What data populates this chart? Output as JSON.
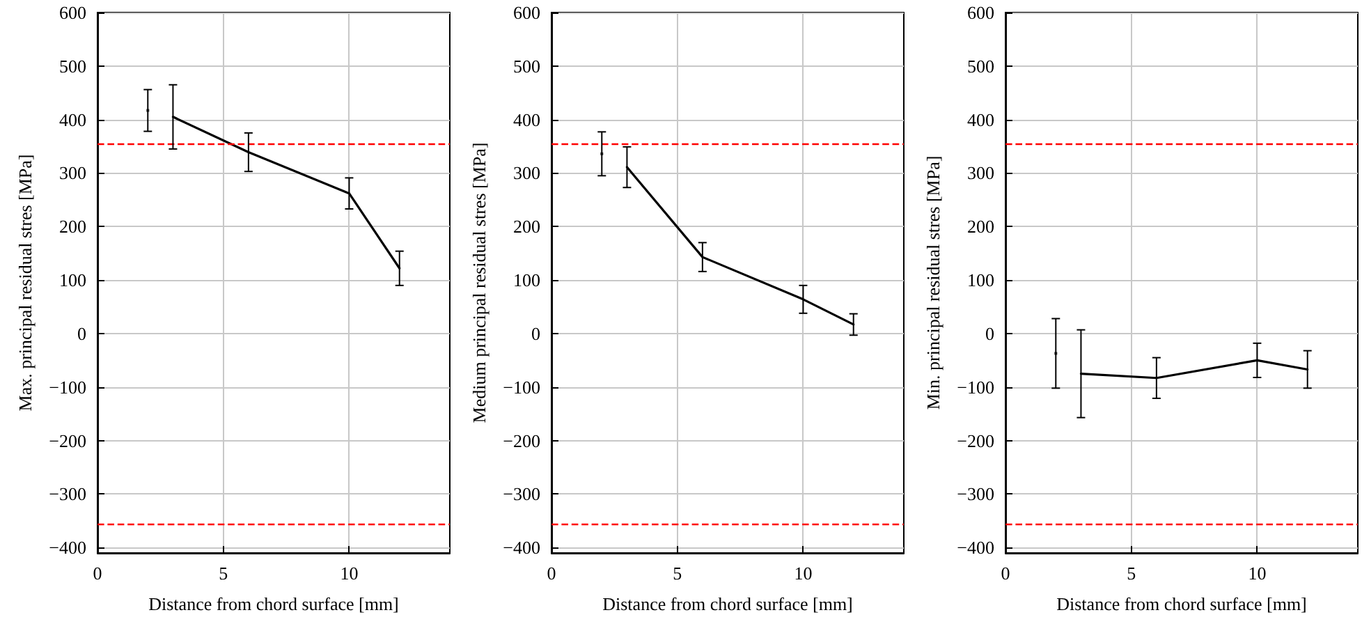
{
  "chart_data": [
    {
      "type": "line",
      "ylabel": "Max. principal residual stres [MPa]",
      "xlabel": "Distance from chord surface [mm]",
      "xlim": [
        0,
        14
      ],
      "xticks": [
        0,
        5,
        10
      ],
      "ylim": [
        -410,
        600
      ],
      "yticks": [
        {
          "value": -400,
          "label": "−400"
        },
        {
          "value": -300,
          "label": "−300"
        },
        {
          "value": -200,
          "label": "−200"
        },
        {
          "value": -100,
          "label": "−100"
        },
        0,
        100,
        200,
        300,
        400,
        500,
        600
      ],
      "grid": true,
      "marker": "none",
      "line_style": "solid",
      "series": [
        {
          "color": "#000000",
          "x": [
            3,
            6,
            10,
            12
          ],
          "values": [
            405,
            339,
            262,
            122
          ],
          "errors": [
            60,
            36,
            29,
            32
          ]
        },
        {
          "type": "scatter",
          "marker": "square",
          "color": "#000000",
          "x": [
            2
          ],
          "values": [
            417
          ],
          "errors": [
            39
          ]
        }
      ],
      "ref_lines": [
        {
          "axis": "y",
          "value": 355,
          "color": "#ff0000",
          "line_style": "dashed"
        },
        {
          "axis": "y",
          "value": -355,
          "color": "#ff0000",
          "line_style": "dashed"
        }
      ]
    },
    {
      "type": "line",
      "ylabel": "Medium principal residual stres [MPa]",
      "xlabel": "Distance from chord surface [mm]",
      "xlim": [
        0,
        14
      ],
      "xticks": [
        0,
        5,
        10
      ],
      "ylim": [
        -410,
        600
      ],
      "yticks": [
        {
          "value": -400,
          "label": "−400"
        },
        {
          "value": -300,
          "label": "−300"
        },
        {
          "value": -200,
          "label": "−200"
        },
        {
          "value": -100,
          "label": "−100"
        },
        0,
        100,
        200,
        300,
        400,
        500,
        600
      ],
      "grid": true,
      "marker": "none",
      "line_style": "solid",
      "series": [
        {
          "color": "#000000",
          "x": [
            3,
            6,
            10,
            12
          ],
          "values": [
            311,
            143,
            64,
            17
          ],
          "errors": [
            38,
            27,
            26,
            20
          ]
        },
        {
          "type": "scatter",
          "marker": "square",
          "color": "#000000",
          "x": [
            2
          ],
          "values": [
            336
          ],
          "errors": [
            41
          ]
        }
      ],
      "ref_lines": [
        {
          "axis": "y",
          "value": 355,
          "color": "#ff0000",
          "line_style": "dashed"
        },
        {
          "axis": "y",
          "value": -355,
          "color": "#ff0000",
          "line_style": "dashed"
        }
      ]
    },
    {
      "type": "line",
      "ylabel": "Min. principal residual stres [MPa]",
      "xlabel": "Distance from chord surface [mm]",
      "xlim": [
        0,
        14
      ],
      "xticks": [
        0,
        5,
        10
      ],
      "ylim": [
        -410,
        600
      ],
      "yticks": [
        {
          "value": -400,
          "label": "−400"
        },
        {
          "value": -300,
          "label": "−300"
        },
        {
          "value": -200,
          "label": "−200"
        },
        {
          "value": -100,
          "label": "−100"
        },
        0,
        100,
        200,
        300,
        400,
        500,
        600
      ],
      "grid": true,
      "marker": "none",
      "line_style": "solid",
      "series": [
        {
          "color": "#000000",
          "x": [
            3,
            6,
            10,
            12
          ],
          "values": [
            -75,
            -83,
            -50,
            -67
          ],
          "errors": [
            82,
            38,
            32,
            35
          ]
        },
        {
          "type": "scatter",
          "marker": "square",
          "color": "#000000",
          "x": [
            2
          ],
          "values": [
            -37
          ],
          "errors": [
            65
          ]
        }
      ],
      "ref_lines": [
        {
          "axis": "y",
          "value": 355,
          "color": "#ff0000",
          "line_style": "dashed"
        },
        {
          "axis": "y",
          "value": -355,
          "color": "#ff0000",
          "line_style": "dashed"
        }
      ]
    }
  ]
}
